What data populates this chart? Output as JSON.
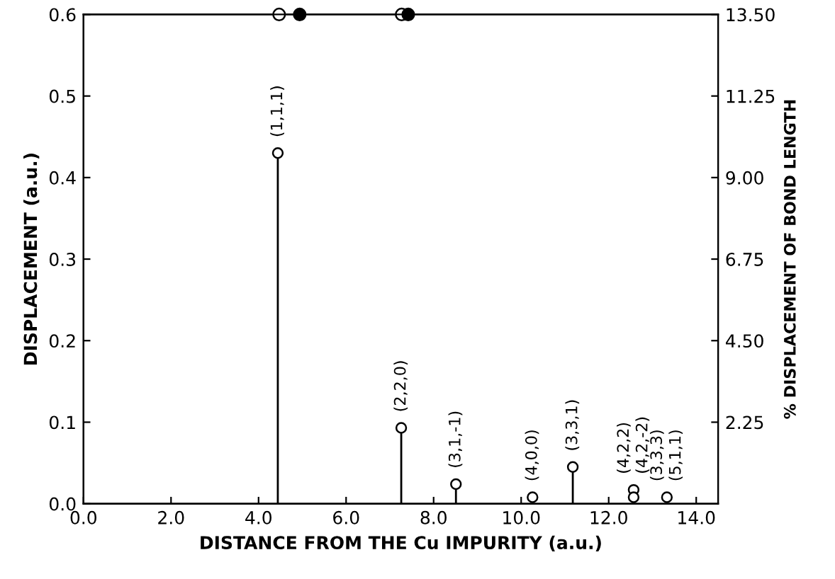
{
  "chart_data": {
    "type": "lollipop",
    "xlabel": "DISTANCE FROM THE Cu IMPURITY (a.u.)",
    "ylabel": "DISPLACEMENT (a.u.)",
    "y2label": "% DISPLACEMENT OF BOND LENGTH",
    "series": [
      {
        "color": "#ffffff",
        "marker": "circle",
        "x": [
          4.44,
          7.26,
          8.51,
          10.26,
          11.18,
          12.57,
          12.57,
          13.33
        ],
        "values": [
          0.43,
          0.093,
          0.024,
          0.008,
          0.045,
          0.017,
          0.008,
          0.008
        ]
      },
      {
        "type": "scatter",
        "color": "#ffffff",
        "marker": "circle",
        "x": [
          4.47,
          7.27
        ],
        "values": [
          0.6,
          0.6
        ]
      },
      {
        "type": "scatter",
        "color": "#000000",
        "marker": "circle",
        "x": [
          4.94,
          7.42
        ],
        "values": [
          0.6,
          0.6
        ]
      }
    ],
    "annotations": [
      {
        "text": "(1,1,1)",
        "x": 4.44,
        "y": 0.43
      },
      {
        "text": "(2,2,0)",
        "x": 7.26,
        "y": 0.093
      },
      {
        "text": "(3,1,-1)",
        "x": 8.51,
        "y": 0.024
      },
      {
        "text": "(4,0,0)",
        "x": 10.26,
        "y": 0.008
      },
      {
        "text": "(3,3,1)",
        "x": 11.18,
        "y": 0.045
      },
      {
        "text": "(4,2,2)",
        "x": 12.57,
        "y": 0.017
      },
      {
        "text": "(4,2,-2)",
        "x": 12.57,
        "y": 0.008
      },
      {
        "text": "(3,3,3)",
        "x": 13.33,
        "y": 0.008
      },
      {
        "text": "(5,1,1)",
        "x": 13.33,
        "y": 0.008
      }
    ],
    "xlim": [
      0,
      14.5
    ],
    "xticks": [
      {
        "value": 0,
        "label": "0.0"
      },
      {
        "value": 2,
        "label": "2.0"
      },
      {
        "value": 4,
        "label": "4.0"
      },
      {
        "value": 6,
        "label": "6.0"
      },
      {
        "value": 8,
        "label": "8.0"
      },
      {
        "value": 10,
        "label": "10.0"
      },
      {
        "value": 12,
        "label": "12.0"
      },
      {
        "value": 14,
        "label": "14.0"
      }
    ],
    "ylim": [
      0,
      0.6
    ],
    "yticks": [
      {
        "value": 0,
        "label": "0.0"
      },
      0.1,
      0.2,
      0.3,
      0.4,
      0.5,
      0.6
    ],
    "y2lim": [
      0,
      13.5
    ],
    "y2ticks": [
      2.25,
      {
        "value": 4.5,
        "label": "4.50"
      },
      6.75,
      {
        "value": 9,
        "label": "9.00"
      },
      11.25,
      {
        "value": 13.5,
        "label": "13.50"
      }
    ],
    "grid": false,
    "legend": false
  }
}
